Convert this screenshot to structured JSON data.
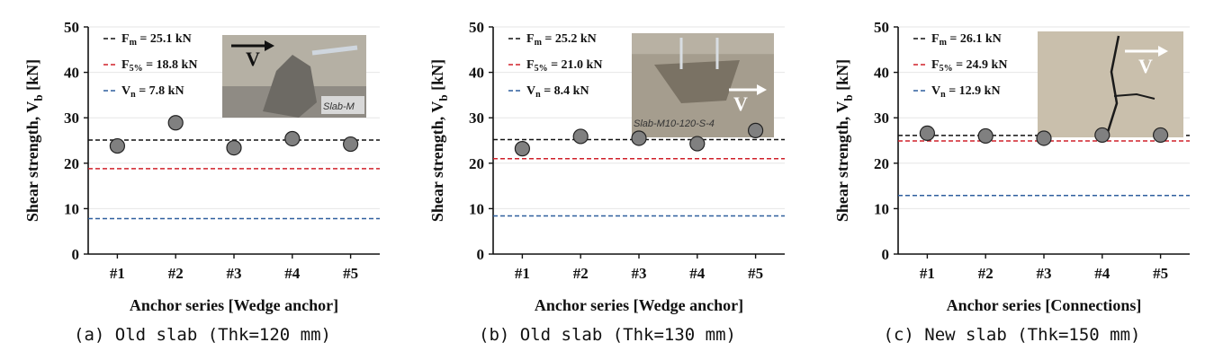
{
  "colors": {
    "mean": "#111111",
    "f5": "#d0202a",
    "vn": "#2f5f9e",
    "marker_fill": "#808080",
    "marker_stroke": "#222222"
  },
  "chart_data": [
    {
      "type": "scatter",
      "caption": "(a) Old slab (Thk=120 mm)",
      "xlabel": "Anchor series [Wedge anchor]",
      "ylabel": "Shear strength, V_b [kN]",
      "categories": [
        "#1",
        "#2",
        "#3",
        "#4",
        "#5"
      ],
      "values": [
        23.8,
        28.9,
        23.4,
        25.4,
        24.2
      ],
      "ylim": [
        0,
        50
      ],
      "yticks": [
        0,
        10,
        20,
        30,
        40,
        50
      ],
      "grid": true,
      "legend_position": "top-left",
      "reference_lines": [
        {
          "key": "mean",
          "symbol": "F",
          "sub": "m",
          "label": "= 25.1 kN",
          "value": 25.1
        },
        {
          "key": "f5",
          "symbol": "F",
          "sub": "5%",
          "label": "= 18.8 kN",
          "value": 18.8
        },
        {
          "key": "vn",
          "symbol": "V",
          "sub": "n",
          "label": "= 7.8 kN",
          "value": 7.8
        }
      ],
      "photo": {
        "arrow_label": "V",
        "arrow_dir": "right",
        "plate_text": "Slab-M",
        "style": "a"
      }
    },
    {
      "type": "scatter",
      "caption": "(b) Old slab (Thk=130 mm)",
      "xlabel": "Anchor series [Wedge anchor]",
      "ylabel": "Shear strength, V_b [kN]",
      "categories": [
        "#1",
        "#2",
        "#3",
        "#4",
        "#5"
      ],
      "values": [
        23.2,
        25.9,
        25.5,
        24.3,
        27.2
      ],
      "ylim": [
        0,
        50
      ],
      "yticks": [
        0,
        10,
        20,
        30,
        40,
        50
      ],
      "grid": true,
      "legend_position": "top-left",
      "reference_lines": [
        {
          "key": "mean",
          "symbol": "F",
          "sub": "m",
          "label": "= 25.2 kN",
          "value": 25.2
        },
        {
          "key": "f5",
          "symbol": "F",
          "sub": "5%",
          "label": "= 21.0 kN",
          "value": 21.0
        },
        {
          "key": "vn",
          "symbol": "V",
          "sub": "n",
          "label": "= 8.4 kN",
          "value": 8.4
        }
      ],
      "photo": {
        "arrow_label": "V",
        "arrow_dir": "right",
        "plate_text": "Slab-M10-120-S-4",
        "style": "b"
      }
    },
    {
      "type": "scatter",
      "caption": "(c) New slab (Thk=150 mm)",
      "xlabel": "Anchor series [Connections]",
      "ylabel": "Shear strength, V_b [kN]",
      "categories": [
        "#1",
        "#2",
        "#3",
        "#4",
        "#5"
      ],
      "values": [
        26.6,
        26.0,
        25.5,
        26.2,
        26.2
      ],
      "ylim": [
        0,
        50
      ],
      "yticks": [
        0,
        10,
        20,
        30,
        40,
        50
      ],
      "grid": true,
      "legend_position": "top-left",
      "reference_lines": [
        {
          "key": "mean",
          "symbol": "F",
          "sub": "m",
          "label": "= 26.1 kN",
          "value": 26.1
        },
        {
          "key": "f5",
          "symbol": "F",
          "sub": "5%",
          "label": "= 24.9 kN",
          "value": 24.9
        },
        {
          "key": "vn",
          "symbol": "V",
          "sub": "n",
          "label": "= 12.9 kN",
          "value": 12.9
        }
      ],
      "photo": {
        "arrow_label": "V",
        "arrow_dir": "right",
        "plate_text": "",
        "style": "c"
      }
    }
  ]
}
